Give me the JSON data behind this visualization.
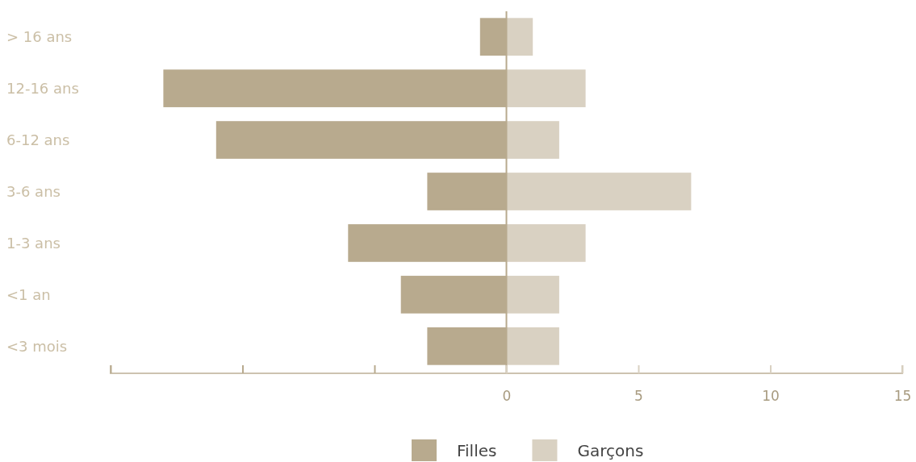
{
  "chart_data": {
    "type": "bar",
    "orientation": "horizontal",
    "stacked": true,
    "ref_lines": [
      {
        "axis": "x",
        "value": 0,
        "color": "#b8aa8e"
      }
    ],
    "categories": [
      "> 16 ans",
      "12-16 ans",
      "6-12 ans",
      "3-6 ans",
      "1-3 ans",
      "<1 an",
      "<3 mois"
    ],
    "series": [
      {
        "name": "Filles",
        "color": "#b8aa8e",
        "values": [
          -1,
          -13,
          -11,
          -3,
          -6,
          -4,
          -3
        ]
      },
      {
        "name": "Garçons",
        "color": "#d9d1c2",
        "values": [
          1,
          3,
          2,
          7,
          3,
          2,
          2
        ]
      }
    ],
    "xlim": [
      -15,
      15
    ],
    "xticks": [
      {
        "value": -15,
        "label": null
      },
      {
        "value": -10,
        "label": null
      },
      {
        "value": -5,
        "label": null
      },
      0,
      5,
      10,
      15
    ],
    "legend": "bottom"
  }
}
